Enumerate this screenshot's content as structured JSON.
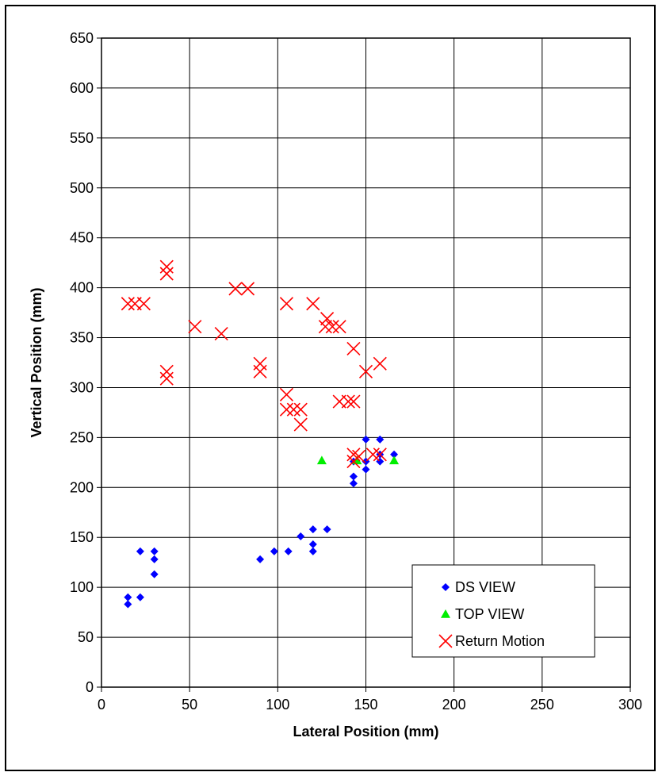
{
  "chart_data": {
    "type": "scatter",
    "title": "",
    "xlabel": "Lateral Position (mm)",
    "ylabel": "Vertical Position (mm)",
    "xlim": [
      0,
      300
    ],
    "ylim": [
      0,
      650
    ],
    "xticks": [
      0,
      50,
      100,
      150,
      200,
      250,
      300
    ],
    "yticks": [
      0,
      50,
      100,
      150,
      200,
      250,
      300,
      350,
      400,
      450,
      500,
      550,
      600,
      650
    ],
    "grid": true,
    "legend_position": "bottom-right",
    "series": [
      {
        "name": "DS VIEW",
        "marker": "diamond",
        "color": "#0000ff",
        "points": [
          [
            15,
            83
          ],
          [
            15,
            90
          ],
          [
            22,
            90
          ],
          [
            22,
            136
          ],
          [
            30,
            113
          ],
          [
            30,
            128
          ],
          [
            30,
            136
          ],
          [
            90,
            128
          ],
          [
            98,
            136
          ],
          [
            106,
            136
          ],
          [
            113,
            151
          ],
          [
            120,
            136
          ],
          [
            120,
            143
          ],
          [
            120,
            158
          ],
          [
            128,
            158
          ],
          [
            143,
            204
          ],
          [
            143,
            211
          ],
          [
            143,
            226
          ],
          [
            150,
            218
          ],
          [
            150,
            226
          ],
          [
            150,
            248
          ],
          [
            158,
            226
          ],
          [
            158,
            233
          ],
          [
            158,
            248
          ],
          [
            166,
            233
          ]
        ]
      },
      {
        "name": "TOP VIEW",
        "marker": "triangle",
        "color": "#00ee00",
        "points": [
          [
            125,
            227
          ],
          [
            145,
            227
          ],
          [
            166,
            227
          ]
        ]
      },
      {
        "name": "Return Motion",
        "marker": "x",
        "color": "#ff0000",
        "points": [
          [
            15,
            384
          ],
          [
            19,
            384
          ],
          [
            24,
            384
          ],
          [
            37,
            309
          ],
          [
            37,
            316
          ],
          [
            37,
            414
          ],
          [
            37,
            421
          ],
          [
            53,
            361
          ],
          [
            68,
            354
          ],
          [
            76,
            399
          ],
          [
            83,
            399
          ],
          [
            90,
            316
          ],
          [
            90,
            324
          ],
          [
            105,
            278
          ],
          [
            105,
            293
          ],
          [
            105,
            384
          ],
          [
            109,
            278
          ],
          [
            113,
            263
          ],
          [
            113,
            278
          ],
          [
            120,
            384
          ],
          [
            127,
            361
          ],
          [
            128,
            369
          ],
          [
            131,
            361
          ],
          [
            135,
            361
          ],
          [
            135,
            286
          ],
          [
            140,
            286
          ],
          [
            143,
            286
          ],
          [
            143,
            339
          ],
          [
            143,
            226
          ],
          [
            143,
            233
          ],
          [
            146,
            231
          ],
          [
            150,
            316
          ],
          [
            154,
            233
          ],
          [
            158,
            233
          ],
          [
            158,
            324
          ]
        ]
      }
    ]
  }
}
